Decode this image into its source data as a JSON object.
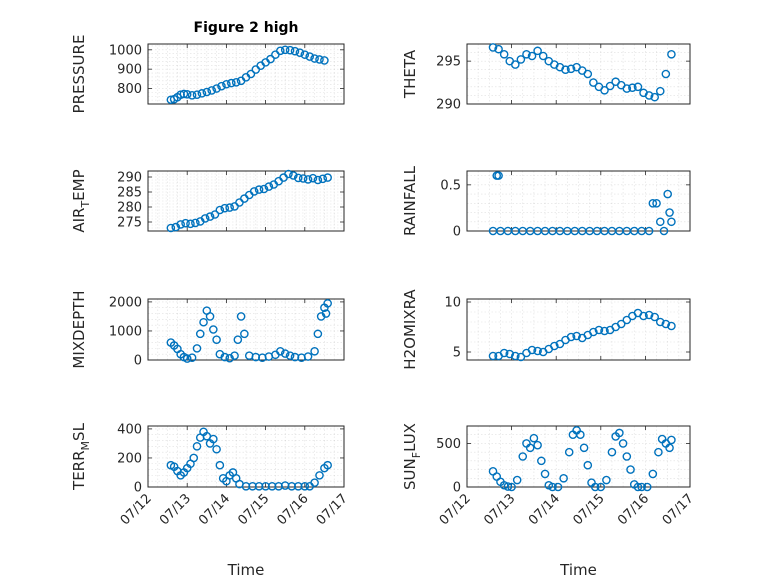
{
  "figure": {
    "title": "Figure 2 high",
    "marker_color": "#0072BD"
  },
  "chart_data": [
    {
      "type": "scatter",
      "ylabel": "PRESSURE",
      "xlabel": "",
      "title": "Figure 2 high",
      "xlim": [
        "07/12",
        "07/17"
      ],
      "ylim": [
        720,
        1030
      ],
      "yticks": [
        800,
        900,
        1000
      ],
      "yticklabels": [
        "800",
        "900",
        "1000"
      ],
      "xtick_labels": [],
      "grid": true,
      "x": [
        "07/12 14:00",
        "07/12 16:00",
        "07/12 18:00",
        "07/12 20:00",
        "07/12 22:00",
        "07/13 00:00",
        "07/13 03:00",
        "07/13 06:00",
        "07/13 09:00",
        "07/13 12:00",
        "07/13 15:00",
        "07/13 18:00",
        "07/13 21:00",
        "07/14 00:00",
        "07/14 03:00",
        "07/14 06:00",
        "07/14 09:00",
        "07/14 12:00",
        "07/14 15:00",
        "07/14 18:00",
        "07/14 21:00",
        "07/15 00:00",
        "07/15 03:00",
        "07/15 06:00",
        "07/15 09:00",
        "07/15 12:00",
        "07/15 15:00",
        "07/15 18:00",
        "07/15 21:00",
        "07/16 00:00",
        "07/16 03:00",
        "07/16 06:00",
        "07/16 09:00",
        "07/16 12:00"
      ],
      "y": [
        742,
        745,
        755,
        768,
        772,
        770,
        765,
        768,
        775,
        782,
        790,
        800,
        812,
        822,
        828,
        832,
        840,
        858,
        875,
        898,
        918,
        935,
        952,
        975,
        995,
        1000,
        998,
        993,
        985,
        975,
        965,
        955,
        950,
        945
      ]
    },
    {
      "type": "scatter",
      "ylabel": "THETA",
      "xlabel": "",
      "xlim": [
        "07/12",
        "07/17"
      ],
      "ylim": [
        290,
        297
      ],
      "yticks": [
        290,
        295
      ],
      "yticklabels": [
        "290",
        "295"
      ],
      "xtick_labels": [],
      "grid": true,
      "x": [
        "07/12 14:00",
        "07/12 17:00",
        "07/12 20:00",
        "07/12 23:00",
        "07/13 02:00",
        "07/13 05:00",
        "07/13 08:00",
        "07/13 11:00",
        "07/13 14:00",
        "07/13 17:00",
        "07/13 20:00",
        "07/13 23:00",
        "07/14 02:00",
        "07/14 05:00",
        "07/14 08:00",
        "07/14 11:00",
        "07/14 14:00",
        "07/14 17:00",
        "07/14 20:00",
        "07/14 23:00",
        "07/15 02:00",
        "07/15 05:00",
        "07/15 08:00",
        "07/15 11:00",
        "07/15 14:00",
        "07/15 17:00",
        "07/15 20:00",
        "07/15 23:00",
        "07/16 02:00",
        "07/16 05:00",
        "07/16 08:00",
        "07/16 11:00",
        "07/16 14:00"
      ],
      "y": [
        296.6,
        296.4,
        295.8,
        295.0,
        294.6,
        295.2,
        295.8,
        295.6,
        296.2,
        295.6,
        295.0,
        294.6,
        294.3,
        294.0,
        294.1,
        294.3,
        293.9,
        293.5,
        292.5,
        292.0,
        291.6,
        292.1,
        292.6,
        292.2,
        291.8,
        291.9,
        292.0,
        291.3,
        291.0,
        290.8,
        291.5,
        293.5,
        295.8
      ]
    },
    {
      "type": "scatter",
      "ylabel": "AIR_TEMP",
      "xlabel": "",
      "xlim": [
        "07/12",
        "07/17"
      ],
      "ylim": [
        272,
        292
      ],
      "yticks": [
        275,
        280,
        285,
        290
      ],
      "yticklabels": [
        "275",
        "280",
        "285",
        "290"
      ],
      "xtick_labels": [],
      "grid": true,
      "x": [
        "07/12 14:00",
        "07/12 17:00",
        "07/12 20:00",
        "07/12 23:00",
        "07/13 02:00",
        "07/13 05:00",
        "07/13 08:00",
        "07/13 11:00",
        "07/13 14:00",
        "07/13 17:00",
        "07/13 20:00",
        "07/13 23:00",
        "07/14 02:00",
        "07/14 05:00",
        "07/14 08:00",
        "07/14 11:00",
        "07/14 14:00",
        "07/14 17:00",
        "07/14 20:00",
        "07/14 23:00",
        "07/15 02:00",
        "07/15 05:00",
        "07/15 08:00",
        "07/15 11:00",
        "07/15 14:00",
        "07/15 17:00",
        "07/15 20:00",
        "07/15 23:00",
        "07/16 02:00",
        "07/16 05:00",
        "07/16 08:00",
        "07/16 11:00",
        "07/16 14:00"
      ],
      "y": [
        273.0,
        273.3,
        274.2,
        274.6,
        274.4,
        274.7,
        275.2,
        276.2,
        276.8,
        277.5,
        279.0,
        279.6,
        279.8,
        280.2,
        281.5,
        282.8,
        284.0,
        285.2,
        285.8,
        286.0,
        286.8,
        287.5,
        288.6,
        289.8,
        291.0,
        290.5,
        289.7,
        289.5,
        289.2,
        289.6,
        289.0,
        289.4,
        289.8
      ]
    },
    {
      "type": "scatter",
      "ylabel": "RAINFALL",
      "xlabel": "",
      "xlim": [
        "07/12",
        "07/17"
      ],
      "ylim": [
        0,
        0.65
      ],
      "yticks": [
        0,
        0.5
      ],
      "yticklabels": [
        "0",
        "0.5"
      ],
      "xtick_labels": [],
      "grid": true,
      "x": [
        "07/12 14:00",
        "07/12 18:00",
        "07/12 22:00",
        "07/13 02:00",
        "07/13 06:00",
        "07/13 10:00",
        "07/13 14:00",
        "07/13 18:00",
        "07/13 22:00",
        "07/14 02:00",
        "07/14 06:00",
        "07/14 10:00",
        "07/14 14:00",
        "07/14 18:00",
        "07/14 22:00",
        "07/15 02:00",
        "07/15 06:00",
        "07/15 10:00",
        "07/15 14:00",
        "07/15 18:00",
        "07/15 22:00",
        "07/16 02:00",
        "07/16 04:00",
        "07/16 06:00",
        "07/16 08:00",
        "07/16 10:00",
        "07/16 12:00",
        "07/16 13:00",
        "07/16 14:00",
        "07/12 16:00",
        "07/12 17:00"
      ],
      "y": [
        0,
        0,
        0,
        0,
        0,
        0,
        0,
        0,
        0,
        0,
        0,
        0,
        0,
        0,
        0,
        0,
        0,
        0,
        0,
        0,
        0,
        0,
        0.3,
        0.3,
        0.1,
        0,
        0.4,
        0.2,
        0.1,
        0.6,
        0.6
      ]
    },
    {
      "type": "scatter",
      "ylabel": "MIXDEPTH",
      "xlabel": "",
      "xlim": [
        "07/12",
        "07/17"
      ],
      "ylim": [
        0,
        2100
      ],
      "yticks": [
        0,
        1000,
        2000
      ],
      "yticklabels": [
        "0",
        "1000",
        "2000"
      ],
      "xtick_labels": [],
      "grid": true,
      "x": [
        "07/12 14:00",
        "07/12 16:00",
        "07/12 18:00",
        "07/12 20:00",
        "07/12 22:00",
        "07/13 00:00",
        "07/13 03:00",
        "07/13 06:00",
        "07/13 08:00",
        "07/13 10:00",
        "07/13 12:00",
        "07/13 14:00",
        "07/13 16:00",
        "07/13 18:00",
        "07/13 20:00",
        "07/13 23:00",
        "07/14 02:00",
        "07/14 05:00",
        "07/14 07:00",
        "07/14 09:00",
        "07/14 11:00",
        "07/14 14:00",
        "07/14 18:00",
        "07/14 22:00",
        "07/15 02:00",
        "07/15 06:00",
        "07/15 09:00",
        "07/15 12:00",
        "07/15 15:00",
        "07/15 18:00",
        "07/15 22:00",
        "07/16 02:00",
        "07/16 06:00",
        "07/16 08:00",
        "07/16 10:00",
        "07/16 12:00",
        "07/16 13:00",
        "07/16 14:00"
      ],
      "y": [
        600,
        500,
        380,
        200,
        100,
        50,
        80,
        400,
        900,
        1300,
        1700,
        1500,
        1050,
        700,
        200,
        100,
        60,
        150,
        700,
        1500,
        900,
        150,
        100,
        80,
        120,
        180,
        300,
        220,
        150,
        100,
        80,
        120,
        300,
        900,
        1500,
        1800,
        1600,
        1950
      ]
    },
    {
      "type": "scatter",
      "ylabel": "H2OMIXRA",
      "xlabel": "",
      "xlim": [
        "07/12",
        "07/17"
      ],
      "ylim": [
        4.2,
        10.3
      ],
      "yticks": [
        5,
        10
      ],
      "yticklabels": [
        "5",
        "10"
      ],
      "xtick_labels": [],
      "grid": true,
      "x": [
        "07/12 14:00",
        "07/12 17:00",
        "07/12 20:00",
        "07/12 23:00",
        "07/13 02:00",
        "07/13 05:00",
        "07/13 08:00",
        "07/13 11:00",
        "07/13 14:00",
        "07/13 17:00",
        "07/13 20:00",
        "07/13 23:00",
        "07/14 02:00",
        "07/14 05:00",
        "07/14 08:00",
        "07/14 11:00",
        "07/14 14:00",
        "07/14 17:00",
        "07/14 20:00",
        "07/14 23:00",
        "07/15 02:00",
        "07/15 05:00",
        "07/15 08:00",
        "07/15 11:00",
        "07/15 14:00",
        "07/15 17:00",
        "07/15 20:00",
        "07/15 23:00",
        "07/16 02:00",
        "07/16 05:00",
        "07/16 08:00",
        "07/16 11:00",
        "07/16 14:00"
      ],
      "y": [
        4.6,
        4.6,
        4.9,
        4.8,
        4.6,
        4.5,
        4.9,
        5.2,
        5.1,
        5.0,
        5.3,
        5.6,
        5.8,
        6.2,
        6.5,
        6.6,
        6.4,
        6.7,
        7.0,
        7.2,
        7.1,
        7.2,
        7.5,
        7.8,
        8.2,
        8.6,
        8.9,
        8.6,
        8.7,
        8.5,
        8.0,
        7.8,
        7.6
      ]
    },
    {
      "type": "scatter",
      "ylabel": "TERR_MSL",
      "xlabel": "Time",
      "xlim": [
        "07/12",
        "07/17"
      ],
      "ylim": [
        0,
        420
      ],
      "yticks": [
        0,
        200,
        400
      ],
      "yticklabels": [
        "0",
        "200",
        "400"
      ],
      "xtick_labels": [
        "07/12",
        "07/13",
        "07/14",
        "07/15",
        "07/16",
        "07/17"
      ],
      "grid": true,
      "x": [
        "07/12 14:00",
        "07/12 16:00",
        "07/12 18:00",
        "07/12 20:00",
        "07/12 22:00",
        "07/13 00:00",
        "07/13 02:00",
        "07/13 04:00",
        "07/13 06:00",
        "07/13 08:00",
        "07/13 10:00",
        "07/13 12:00",
        "07/13 14:00",
        "07/13 16:00",
        "07/13 18:00",
        "07/13 20:00",
        "07/13 22:00",
        "07/14 00:00",
        "07/14 02:00",
        "07/14 04:00",
        "07/14 06:00",
        "07/14 08:00",
        "07/14 12:00",
        "07/14 16:00",
        "07/14 20:00",
        "07/15 00:00",
        "07/15 04:00",
        "07/15 08:00",
        "07/15 12:00",
        "07/15 16:00",
        "07/15 20:00",
        "07/16 00:00",
        "07/16 03:00",
        "07/16 06:00",
        "07/16 09:00",
        "07/16 12:00",
        "07/16 14:00"
      ],
      "y": [
        150,
        140,
        110,
        80,
        100,
        130,
        160,
        200,
        280,
        340,
        380,
        350,
        300,
        330,
        260,
        150,
        60,
        40,
        80,
        100,
        60,
        20,
        5,
        5,
        5,
        5,
        5,
        5,
        10,
        5,
        5,
        5,
        5,
        30,
        80,
        130,
        150
      ]
    },
    {
      "type": "scatter",
      "ylabel": "SUN_FLUX",
      "xlabel": "Time",
      "xlim": [
        "07/12",
        "07/17"
      ],
      "ylim": [
        0,
        700
      ],
      "yticks": [
        0,
        500
      ],
      "yticklabels": [
        "0",
        "500"
      ],
      "xtick_labels": [
        "07/12",
        "07/13",
        "07/14",
        "07/15",
        "07/16",
        "07/17"
      ],
      "grid": true,
      "x": [
        "07/12 14:00",
        "07/12 16:00",
        "07/12 18:00",
        "07/12 20:00",
        "07/12 22:00",
        "07/13 00:00",
        "07/13 03:00",
        "07/13 06:00",
        "07/13 08:00",
        "07/13 10:00",
        "07/13 12:00",
        "07/13 14:00",
        "07/13 16:00",
        "07/13 18:00",
        "07/13 20:00",
        "07/13 22:00",
        "07/14 01:00",
        "07/14 04:00",
        "07/14 07:00",
        "07/14 09:00",
        "07/14 11:00",
        "07/14 13:00",
        "07/14 15:00",
        "07/14 17:00",
        "07/14 19:00",
        "07/14 21:00",
        "07/15 00:00",
        "07/15 03:00",
        "07/15 06:00",
        "07/15 08:00",
        "07/15 10:00",
        "07/15 12:00",
        "07/15 14:00",
        "07/15 16:00",
        "07/15 18:00",
        "07/15 20:00",
        "07/15 22:00",
        "07/16 01:00",
        "07/16 04:00",
        "07/16 07:00",
        "07/16 09:00",
        "07/16 11:00",
        "07/16 13:00",
        "07/16 14:00"
      ],
      "y": [
        180,
        120,
        60,
        20,
        5,
        0,
        80,
        350,
        500,
        450,
        560,
        480,
        300,
        150,
        20,
        0,
        0,
        100,
        400,
        600,
        650,
        600,
        450,
        250,
        50,
        0,
        0,
        80,
        400,
        580,
        620,
        500,
        350,
        200,
        30,
        0,
        0,
        0,
        150,
        400,
        550,
        500,
        450,
        540
      ]
    }
  ]
}
